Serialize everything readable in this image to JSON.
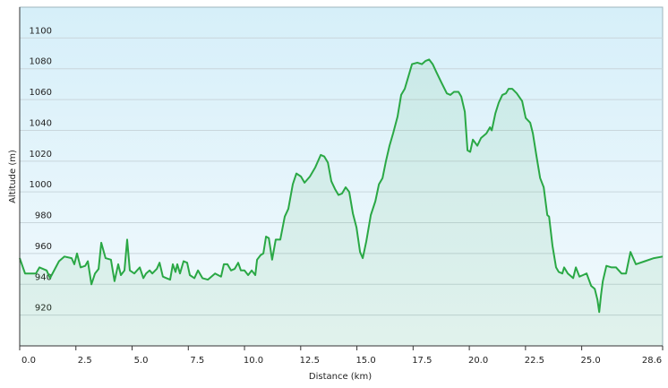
{
  "chart_data": {
    "type": "area",
    "x_label": "Distance  (km)",
    "y_label": "Altitude (m)",
    "x": [
      0,
      0.24,
      0.72,
      0.88,
      1.2,
      1.35,
      1.75,
      1.99,
      2.31,
      2.43,
      2.55,
      2.71,
      2.91,
      3.03,
      3.19,
      3.35,
      3.51,
      3.63,
      3.82,
      4.06,
      4.22,
      4.38,
      4.5,
      4.66,
      4.78,
      4.9,
      5.1,
      5.22,
      5.34,
      5.5,
      5.62,
      5.78,
      5.9,
      6.1,
      6.22,
      6.37,
      6.53,
      6.69,
      6.81,
      6.93,
      7.01,
      7.13,
      7.29,
      7.45,
      7.57,
      7.77,
      7.93,
      8.13,
      8.37,
      8.69,
      8.96,
      9.08,
      9.24,
      9.4,
      9.56,
      9.72,
      9.84,
      10.0,
      10.16,
      10.32,
      10.48,
      10.56,
      10.72,
      10.84,
      10.96,
      11.08,
      11.23,
      11.39,
      11.59,
      11.79,
      11.95,
      12.15,
      12.31,
      12.51,
      12.67,
      12.91,
      13.15,
      13.39,
      13.55,
      13.71,
      13.86,
      14.02,
      14.18,
      14.34,
      14.5,
      14.66,
      14.82,
      14.98,
      15.14,
      15.26,
      15.42,
      15.62,
      15.82,
      15.98,
      16.14,
      16.29,
      16.45,
      16.61,
      16.81,
      16.97,
      17.13,
      17.29,
      17.45,
      17.69,
      17.89,
      18.05,
      18.21,
      18.37,
      18.53,
      18.76,
      19.0,
      19.16,
      19.32,
      19.52,
      19.64,
      19.8,
      19.92,
      20.04,
      20.16,
      20.36,
      20.52,
      20.76,
      20.92,
      21.0,
      21.16,
      21.31,
      21.47,
      21.63,
      21.75,
      21.91,
      22.11,
      22.35,
      22.51,
      22.71,
      22.83,
      22.99,
      23.15,
      23.31,
      23.47,
      23.55,
      23.7,
      23.86,
      23.98,
      24.14,
      24.22,
      24.38,
      24.62,
      24.74,
      24.9,
      25.06,
      25.22,
      25.42,
      25.58,
      25.7,
      25.78,
      25.86,
      25.94,
      26.1,
      26.33,
      26.53,
      26.77,
      26.97,
      27.17,
      27.41,
      27.81,
      28.21,
      28.6
    ],
    "values": [
      957,
      947,
      947,
      951,
      949,
      944,
      955,
      958,
      957,
      953,
      960,
      951,
      952,
      955,
      940,
      947,
      950,
      967,
      957,
      956,
      942,
      953,
      946,
      949,
      969,
      949,
      947,
      949,
      951,
      944,
      947,
      949,
      947,
      950,
      954,
      945,
      944,
      943,
      953,
      948,
      953,
      947,
      955,
      954,
      946,
      944,
      949,
      944,
      943,
      947,
      945,
      953,
      953,
      949,
      950,
      954,
      949,
      949,
      946,
      949,
      946,
      956,
      959,
      960,
      971,
      970,
      956,
      969,
      969,
      984,
      989,
      1005,
      1012,
      1010,
      1006,
      1010,
      1016,
      1024,
      1023,
      1019,
      1007,
      1002,
      998,
      999,
      1003,
      1000,
      986,
      977,
      961,
      957,
      968,
      985,
      994,
      1005,
      1009,
      1020,
      1030,
      1038,
      1049,
      1063,
      1067,
      1075,
      1083,
      1084,
      1083,
      1085,
      1086,
      1083,
      1078,
      1071,
      1064,
      1063,
      1065,
      1065,
      1062,
      1052,
      1027,
      1026,
      1034,
      1030,
      1035,
      1038,
      1042,
      1040,
      1051,
      1058,
      1063,
      1064,
      1067,
      1067,
      1064,
      1059,
      1048,
      1045,
      1038,
      1023,
      1009,
      1003,
      985,
      984,
      965,
      951,
      948,
      947,
      951,
      947,
      944,
      951,
      945,
      946,
      947,
      939,
      937,
      930,
      922,
      933,
      942,
      952,
      951,
      951,
      947,
      947,
      961,
      953,
      955,
      957,
      958
    ],
    "color": "#2aa845",
    "xlim": [
      0,
      28.6
    ],
    "xticks": [
      {
        "value": 0,
        "label": "0.0"
      },
      2.5,
      {
        "value": 5,
        "label": "5.0"
      },
      7.5,
      {
        "value": 10,
        "label": "10.0"
      },
      12.5,
      {
        "value": 15,
        "label": "15.0"
      },
      17.5,
      {
        "value": 20,
        "label": "20.0"
      },
      22.5,
      {
        "value": 25,
        "label": "25.0"
      },
      28.6
    ],
    "ylim": [
      900,
      1120
    ],
    "yticks": [
      920,
      940,
      960,
      980,
      1000,
      1020,
      1040,
      1060,
      1080,
      1100
    ],
    "grid": true
  }
}
